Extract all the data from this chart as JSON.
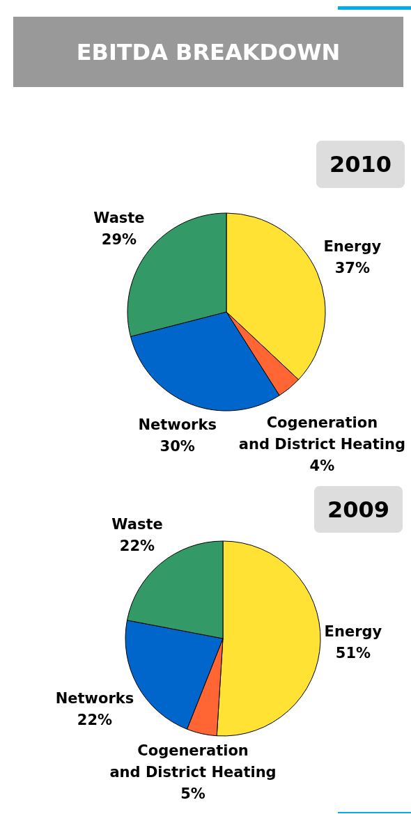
{
  "chart_data": [
    {
      "type": "pie",
      "title": "EBITDA BREAKDOWN",
      "subtitle": "2010",
      "categories": [
        "Energy",
        "Cogeneration\nand District Heating",
        "Networks",
        "Waste"
      ],
      "values": [
        37,
        4,
        30,
        29
      ],
      "value_labels": [
        "37%",
        "4%",
        "30%",
        "29%"
      ],
      "colors": [
        "#ffe234",
        "#ff6633",
        "#0066cc",
        "#339966"
      ]
    },
    {
      "type": "pie",
      "title": "2009",
      "categories": [
        "Energy",
        "Cogeneration\nand District Heating",
        "Networks",
        "Waste"
      ],
      "values": [
        51,
        5,
        22,
        22
      ],
      "value_labels": [
        "51%",
        "5%",
        "22%",
        "22%"
      ],
      "colors": [
        "#ffe234",
        "#ff6633",
        "#0066cc",
        "#339966"
      ]
    }
  ]
}
